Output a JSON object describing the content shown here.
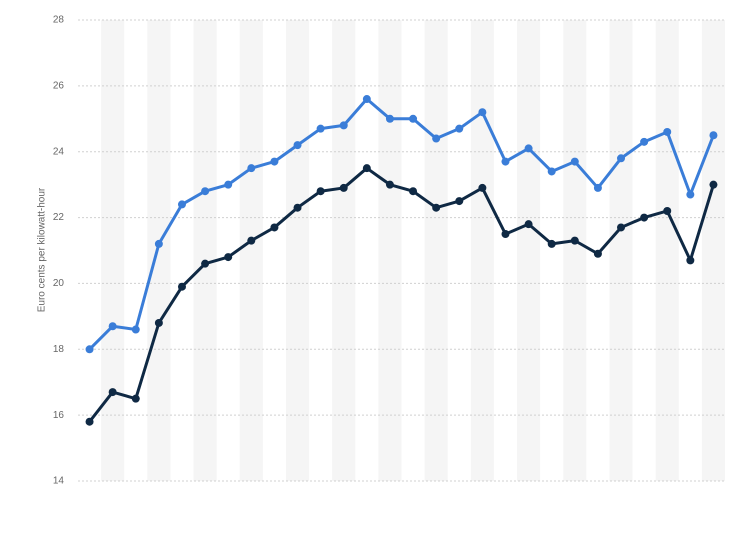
{
  "chart_data": {
    "type": "line",
    "y_label": "Euro cents per kilowatt-hour",
    "categories": [
      null,
      null,
      null,
      null,
      null,
      null,
      null,
      null,
      null,
      null,
      null,
      null,
      null,
      null,
      null,
      null,
      null,
      null,
      null,
      null,
      null,
      null,
      null,
      null,
      null,
      null,
      null,
      null
    ],
    "series": [
      {
        "color": "#3a7dd8",
        "values": [
          18.0,
          18.7,
          18.6,
          21.2,
          22.4,
          22.8,
          23.0,
          23.5,
          23.7,
          24.2,
          24.7,
          24.8,
          25.6,
          25.0,
          25.0,
          24.4,
          24.7,
          25.2,
          23.7,
          24.1,
          23.4,
          23.7,
          22.9,
          23.8,
          24.3,
          24.6,
          22.7,
          24.5
        ]
      },
      {
        "color": "#0f2944",
        "values": [
          15.8,
          16.7,
          16.5,
          18.8,
          19.9,
          20.6,
          20.8,
          21.3,
          21.7,
          22.3,
          22.8,
          22.9,
          23.5,
          23.0,
          22.8,
          22.3,
          22.5,
          22.9,
          21.5,
          21.8,
          21.2,
          21.3,
          20.9,
          21.7,
          22.0,
          22.2,
          20.7,
          23.0
        ]
      }
    ],
    "ylim": [
      14,
      28
    ],
    "yticks": [
      14,
      16,
      18,
      20,
      22,
      24,
      26,
      28
    ],
    "grid": true
  }
}
